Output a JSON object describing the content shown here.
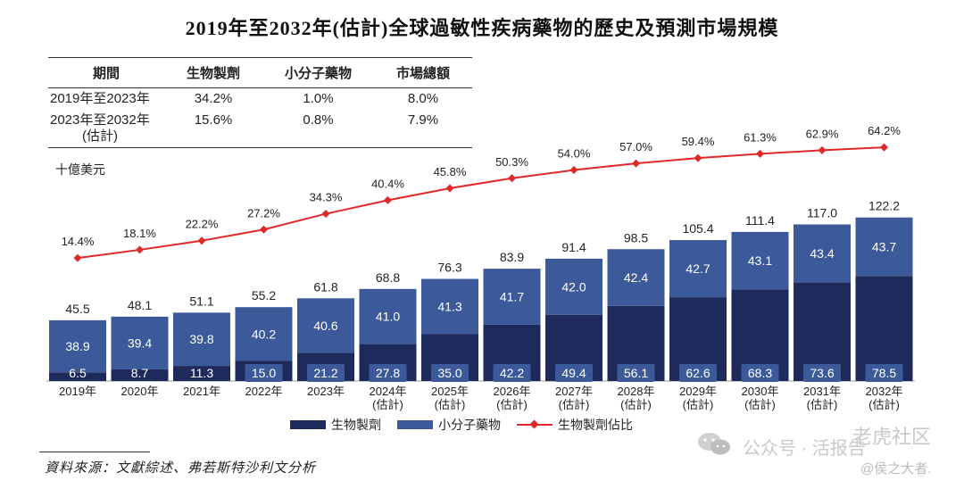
{
  "title": "2019年至2032年(估計)全球過敏性疾病藥物的歷史及預測市場規模",
  "cagr_table": {
    "headers": [
      "期間",
      "生物製劑",
      "小分子藥物",
      "市場總額"
    ],
    "rows": [
      {
        "period": "2019年至2023年",
        "period2": "",
        "bio": "34.2%",
        "small": "1.0%",
        "total": "8.0%"
      },
      {
        "period": "2023年至2032年",
        "period2": "(估計)",
        "bio": "15.6%",
        "small": "0.8%",
        "total": "7.9%"
      }
    ]
  },
  "unit_label": "十億美元",
  "colors": {
    "biologics": "#1f2a5c",
    "small_molecule": "#3c5a9a",
    "share_line": "#e02828"
  },
  "chart_data": {
    "type": "bar",
    "stacked": true,
    "categories": [
      [
        "2019年"
      ],
      [
        "2020年"
      ],
      [
        "2021年"
      ],
      [
        "2022年"
      ],
      [
        "2023年"
      ],
      [
        "2024年",
        "(估計)"
      ],
      [
        "2025年",
        "(估計)"
      ],
      [
        "2026年",
        "(估計)"
      ],
      [
        "2027年",
        "(估計)"
      ],
      [
        "2028年",
        "(估計)"
      ],
      [
        "2029年",
        "(估計)"
      ],
      [
        "2030年",
        "(估計)"
      ],
      [
        "2031年",
        "(估計)"
      ],
      [
        "2032年",
        "(估計)"
      ]
    ],
    "series": [
      {
        "name": "生物製劑",
        "values": [
          6.5,
          8.7,
          11.3,
          15.0,
          21.2,
          27.8,
          35.0,
          42.2,
          49.4,
          56.1,
          62.6,
          68.3,
          73.6,
          78.5
        ],
        "labels": [
          "6.5",
          "8.7",
          "11.3",
          "15.0",
          "21.2",
          "27.8",
          "35.0",
          "42.2",
          "49.4",
          "56.1",
          "62.6",
          "68.3",
          "73.6",
          "78.5"
        ]
      },
      {
        "name": "小分子藥物",
        "values": [
          38.9,
          39.4,
          39.8,
          40.2,
          40.6,
          41.0,
          41.3,
          41.7,
          42.0,
          42.4,
          42.7,
          43.1,
          43.4,
          43.7
        ],
        "labels": [
          "38.9",
          "39.4",
          "39.8",
          "40.2",
          "40.6",
          "41.0",
          "41.3",
          "41.7",
          "42.0",
          "42.4",
          "42.7",
          "43.1",
          "43.4",
          "43.7"
        ]
      }
    ],
    "totals": [
      45.5,
      48.1,
      51.1,
      55.2,
      61.8,
      68.8,
      76.3,
      83.9,
      91.4,
      98.5,
      105.4,
      111.4,
      117.0,
      122.2
    ],
    "total_labels": [
      "45.5",
      "48.1",
      "51.1",
      "55.2",
      "61.8",
      "68.8",
      "76.3",
      "83.9",
      "91.4",
      "98.5",
      "105.4",
      "111.4",
      "117.0",
      "122.2"
    ],
    "line_series": {
      "name": "生物製劑佔比",
      "values": [
        14.4,
        18.1,
        22.2,
        27.2,
        34.3,
        40.4,
        45.8,
        50.3,
        54.0,
        57.0,
        59.4,
        61.3,
        62.9,
        64.2
      ],
      "labels": [
        "14.4%",
        "18.1%",
        "22.2%",
        "27.2%",
        "34.3%",
        "40.4%",
        "45.8%",
        "50.3%",
        "54.0%",
        "57.0%",
        "59.4%",
        "61.3%",
        "62.9%",
        "64.2%"
      ]
    },
    "legend_position": "bottom"
  },
  "legend": {
    "biologics": "生物製劑",
    "small_molecule": "小分子藥物",
    "share": "生物製劑佔比"
  },
  "source": "資料來源：文獻綜述、弗若斯特沙利文分析",
  "watermark": {
    "text1": "公众号 · 活报告",
    "text2": "老虎社区",
    "text3": "@侯之大者."
  }
}
